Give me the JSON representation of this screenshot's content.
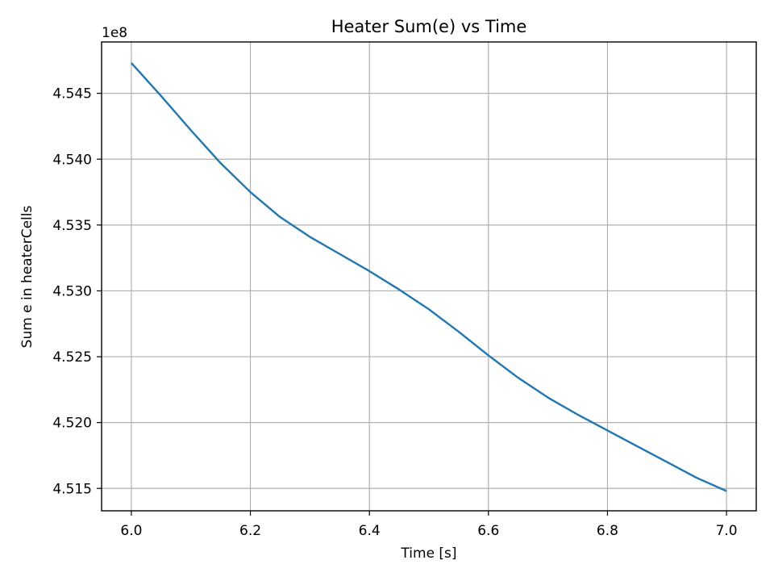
{
  "chart_data": {
    "type": "line",
    "title": "Heater Sum(e) vs Time",
    "xlabel": "Time [s]",
    "ylabel": "Sum e in heaterCells",
    "offset_text": "1e8",
    "xlim": [
      5.95,
      7.05
    ],
    "ylim": [
      4.5133,
      4.5489
    ],
    "x_ticks": [
      6.0,
      6.2,
      6.4,
      6.6,
      6.8,
      7.0
    ],
    "x_tick_labels": [
      "6.0",
      "6.2",
      "6.4",
      "6.6",
      "6.8",
      "7.0"
    ],
    "y_ticks": [
      4.515,
      4.52,
      4.525,
      4.53,
      4.535,
      4.54,
      4.545
    ],
    "y_tick_labels": [
      "4.515",
      "4.520",
      "4.525",
      "4.530",
      "4.535",
      "4.540",
      "4.545"
    ],
    "grid": true,
    "series": [
      {
        "name": "Sum e",
        "color": "#1f77b4",
        "x": [
          6.0,
          6.05,
          6.1,
          6.15,
          6.2,
          6.25,
          6.3,
          6.35,
          6.4,
          6.45,
          6.5,
          6.55,
          6.6,
          6.65,
          6.7,
          6.75,
          6.8,
          6.85,
          6.9,
          6.95,
          7.0
        ],
        "y": [
          4.5473,
          4.5448,
          4.5422,
          4.5397,
          4.5375,
          4.5356,
          4.5341,
          4.5328,
          4.5315,
          4.5301,
          4.5286,
          4.5269,
          4.5251,
          4.5234,
          4.5219,
          4.5206,
          4.5194,
          4.5182,
          4.517,
          4.5158,
          4.5148
        ]
      }
    ]
  }
}
